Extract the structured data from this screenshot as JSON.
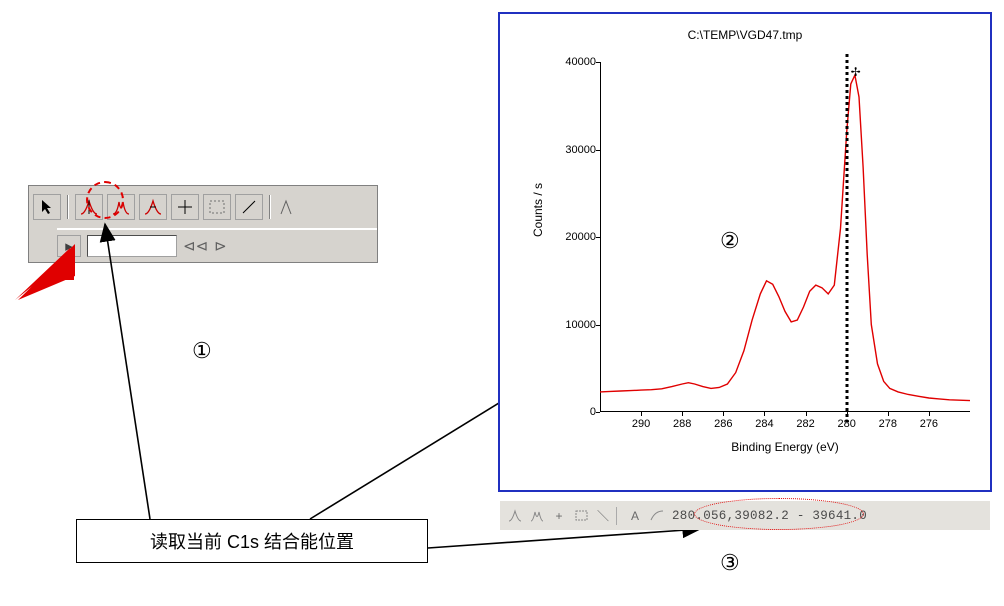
{
  "toolbar": {
    "buttons": [
      "pointer",
      "peak1",
      "peak2",
      "peak3",
      "cross",
      "marquee",
      "line-tool"
    ],
    "row2_buttons": [
      "nav-prev",
      "step-back",
      "step-fwd"
    ],
    "circled_button_index": 1
  },
  "chart": {
    "title": "C:\\TEMP\\VGD47.tmp",
    "ylabel": "Counts / s",
    "xlabel": "Binding Energy (eV)",
    "xlim": [
      292,
      274
    ],
    "xticks": [
      290,
      288,
      286,
      284,
      282,
      280,
      278,
      276
    ],
    "ylim": [
      0,
      40000
    ],
    "yticks": [
      0,
      10000,
      20000,
      30000,
      40000
    ],
    "line_color": "#e00000",
    "background": "#ffffff",
    "cursor_x": 280,
    "series": [
      [
        292.0,
        2300
      ],
      [
        291.5,
        2350
      ],
      [
        291.0,
        2400
      ],
      [
        290.5,
        2450
      ],
      [
        290.0,
        2500
      ],
      [
        289.5,
        2550
      ],
      [
        289.0,
        2650
      ],
      [
        288.5,
        2900
      ],
      [
        288.0,
        3200
      ],
      [
        287.7,
        3350
      ],
      [
        287.4,
        3200
      ],
      [
        287.0,
        2900
      ],
      [
        286.6,
        2700
      ],
      [
        286.2,
        2800
      ],
      [
        285.8,
        3200
      ],
      [
        285.4,
        4500
      ],
      [
        285.0,
        7000
      ],
      [
        284.6,
        10500
      ],
      [
        284.2,
        13500
      ],
      [
        283.9,
        15000
      ],
      [
        283.6,
        14600
      ],
      [
        283.3,
        13200
      ],
      [
        283.0,
        11500
      ],
      [
        282.7,
        10300
      ],
      [
        282.4,
        10500
      ],
      [
        282.1,
        12000
      ],
      [
        281.8,
        13800
      ],
      [
        281.5,
        14500
      ],
      [
        281.2,
        14200
      ],
      [
        280.9,
        13500
      ],
      [
        280.6,
        14500
      ],
      [
        280.3,
        21000
      ],
      [
        280.0,
        32000
      ],
      [
        279.8,
        37500
      ],
      [
        279.6,
        38500
      ],
      [
        279.4,
        36000
      ],
      [
        279.2,
        28000
      ],
      [
        279.0,
        18000
      ],
      [
        278.8,
        10000
      ],
      [
        278.5,
        5500
      ],
      [
        278.2,
        3500
      ],
      [
        277.9,
        2700
      ],
      [
        277.5,
        2300
      ],
      [
        277.0,
        2000
      ],
      [
        276.5,
        1800
      ],
      [
        276.0,
        1600
      ],
      [
        275.5,
        1500
      ],
      [
        275.0,
        1400
      ],
      [
        274.5,
        1350
      ],
      [
        274.0,
        1300
      ]
    ]
  },
  "status": {
    "icons": [
      "peak",
      "split",
      "cross",
      "marquee",
      "line",
      "sep",
      "text-A",
      "fit"
    ],
    "readout": "280.056,39082.2  - 39641.0"
  },
  "annotations": {
    "caption": "读取当前 C1s 结合能位置",
    "marker1": "①",
    "marker2": "②",
    "marker3": "③"
  },
  "colors": {
    "window_border": "#2030c0",
    "toolbar_bg": "#d6d3ce",
    "status_bg": "#e4e2dd",
    "arrow_red": "#e00000"
  }
}
